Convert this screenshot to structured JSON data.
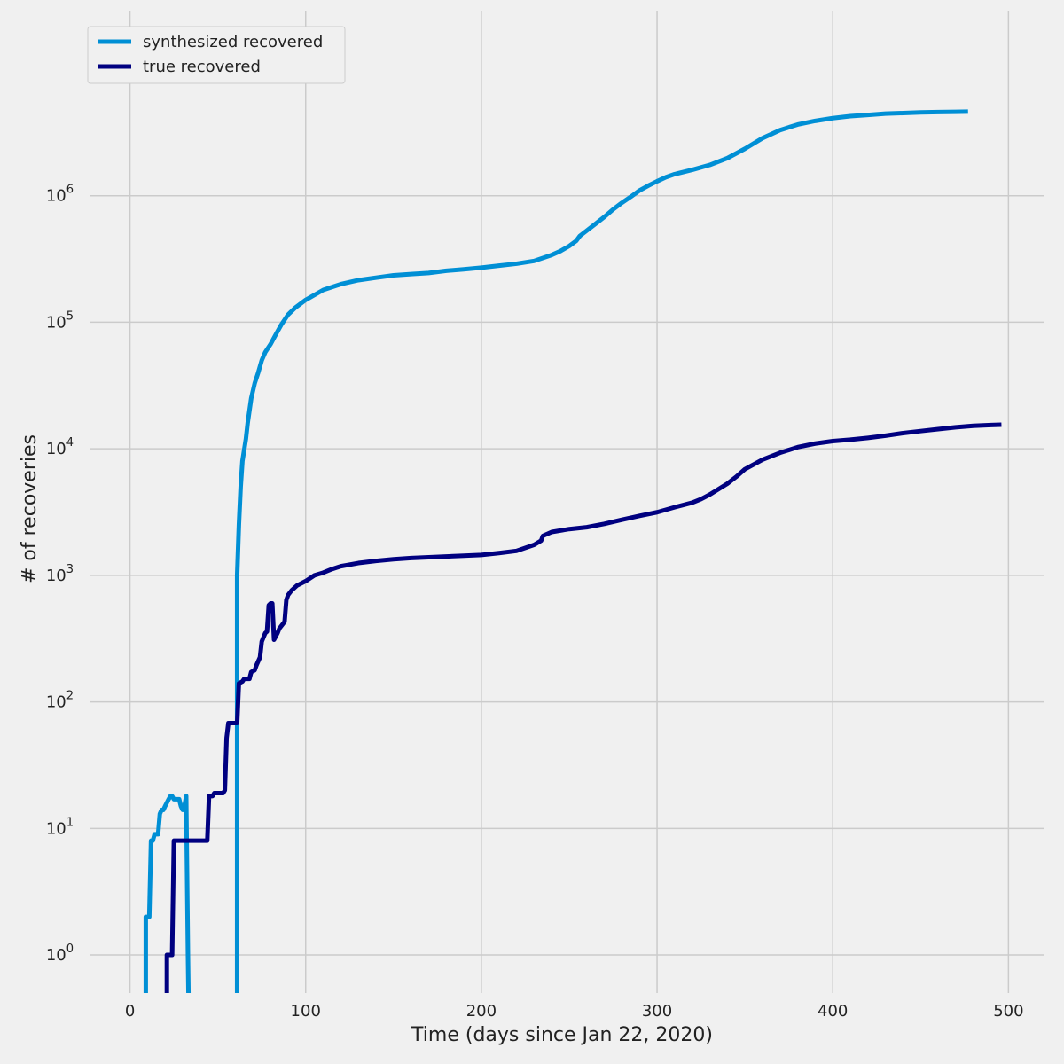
{
  "chart_data": {
    "type": "line",
    "title": "",
    "xlabel": "Time (days since Jan 22, 2020)",
    "ylabel": "# of recoveries",
    "yscale": "log",
    "xlim": [
      -23,
      520
    ],
    "ylim": [
      0.5,
      29000000
    ],
    "grid": true,
    "legend_position": "top-left",
    "x_ticks": [
      {
        "value": 0,
        "label": "0"
      },
      {
        "value": 100,
        "label": "100"
      },
      {
        "value": 200,
        "label": "200"
      },
      {
        "value": 300,
        "label": "300"
      },
      {
        "value": 400,
        "label": "400"
      },
      {
        "value": 500,
        "label": "500"
      }
    ],
    "y_ticks": [
      {
        "value": 1,
        "base": "10",
        "exp": "0"
      },
      {
        "value": 10,
        "base": "10",
        "exp": "1"
      },
      {
        "value": 100,
        "base": "10",
        "exp": "2"
      },
      {
        "value": 1000,
        "base": "10",
        "exp": "3"
      },
      {
        "value": 10000,
        "base": "10",
        "exp": "4"
      },
      {
        "value": 100000,
        "base": "10",
        "exp": "5"
      },
      {
        "value": 1000000,
        "base": "10",
        "exp": "6"
      }
    ],
    "series": [
      {
        "name": "synthesized recovered",
        "color": "#008fd5",
        "points": [
          [
            9,
            0.3
          ],
          [
            9,
            2
          ],
          [
            11,
            2
          ],
          [
            12,
            8
          ],
          [
            13,
            8
          ],
          [
            14,
            9
          ],
          [
            16,
            9
          ],
          [
            17,
            13
          ],
          [
            18,
            14
          ],
          [
            19,
            14
          ],
          [
            20,
            15
          ],
          [
            22,
            17
          ],
          [
            23,
            18
          ],
          [
            24,
            18
          ],
          [
            25,
            17
          ],
          [
            27,
            17
          ],
          [
            28,
            17
          ],
          [
            29,
            15
          ],
          [
            30,
            14
          ],
          [
            31,
            15
          ],
          [
            32,
            18
          ],
          [
            33,
            1
          ],
          [
            33.5,
            0.3
          ],
          [
            61,
            0.3
          ],
          [
            61,
            1000
          ],
          [
            62,
            2500
          ],
          [
            63,
            5000
          ],
          [
            64,
            8000
          ],
          [
            66,
            12000
          ],
          [
            67,
            16000
          ],
          [
            69,
            25000
          ],
          [
            71,
            33000
          ],
          [
            73,
            40000
          ],
          [
            75,
            50000
          ],
          [
            77,
            58000
          ],
          [
            80,
            67000
          ],
          [
            83,
            80000
          ],
          [
            86,
            95000
          ],
          [
            90,
            115000
          ],
          [
            94,
            130000
          ],
          [
            100,
            150000
          ],
          [
            110,
            180000
          ],
          [
            120,
            200000
          ],
          [
            130,
            215000
          ],
          [
            140,
            225000
          ],
          [
            150,
            235000
          ],
          [
            160,
            240000
          ],
          [
            170,
            245000
          ],
          [
            180,
            255000
          ],
          [
            190,
            262000
          ],
          [
            200,
            270000
          ],
          [
            210,
            280000
          ],
          [
            220,
            290000
          ],
          [
            230,
            305000
          ],
          [
            240,
            340000
          ],
          [
            245,
            365000
          ],
          [
            250,
            400000
          ],
          [
            254,
            440000
          ],
          [
            256,
            480000
          ],
          [
            260,
            530000
          ],
          [
            265,
            600000
          ],
          [
            270,
            680000
          ],
          [
            275,
            780000
          ],
          [
            280,
            880000
          ],
          [
            285,
            980000
          ],
          [
            290,
            1100000
          ],
          [
            295,
            1200000
          ],
          [
            300,
            1300000
          ],
          [
            305,
            1400000
          ],
          [
            310,
            1480000
          ],
          [
            320,
            1600000
          ],
          [
            330,
            1750000
          ],
          [
            340,
            1980000
          ],
          [
            350,
            2350000
          ],
          [
            360,
            2850000
          ],
          [
            370,
            3300000
          ],
          [
            380,
            3650000
          ],
          [
            390,
            3900000
          ],
          [
            400,
            4100000
          ],
          [
            410,
            4250000
          ],
          [
            420,
            4350000
          ],
          [
            430,
            4450000
          ],
          [
            440,
            4500000
          ],
          [
            450,
            4550000
          ],
          [
            460,
            4580000
          ],
          [
            470,
            4600000
          ],
          [
            477,
            4620000
          ]
        ]
      },
      {
        "name": "true recovered",
        "color": "#000080",
        "points": [
          [
            21,
            0.3
          ],
          [
            21,
            1
          ],
          [
            24,
            1
          ],
          [
            25,
            8
          ],
          [
            44,
            8
          ],
          [
            45,
            18
          ],
          [
            47,
            18
          ],
          [
            48,
            19
          ],
          [
            53,
            19
          ],
          [
            54,
            20
          ],
          [
            55,
            52
          ],
          [
            56,
            68
          ],
          [
            61,
            68
          ],
          [
            62,
            140
          ],
          [
            64,
            145
          ],
          [
            65,
            152
          ],
          [
            68,
            152
          ],
          [
            69,
            172
          ],
          [
            71,
            178
          ],
          [
            72,
            195
          ],
          [
            74,
            225
          ],
          [
            75,
            300
          ],
          [
            77,
            350
          ],
          [
            78,
            360
          ],
          [
            79,
            580
          ],
          [
            80,
            600
          ],
          [
            81,
            600
          ],
          [
            82,
            310
          ],
          [
            84,
            350
          ],
          [
            85,
            380
          ],
          [
            88,
            430
          ],
          [
            89,
            640
          ],
          [
            90,
            700
          ],
          [
            92,
            760
          ],
          [
            95,
            830
          ],
          [
            100,
            900
          ],
          [
            105,
            1000
          ],
          [
            110,
            1050
          ],
          [
            115,
            1120
          ],
          [
            120,
            1180
          ],
          [
            130,
            1250
          ],
          [
            140,
            1300
          ],
          [
            150,
            1340
          ],
          [
            160,
            1370
          ],
          [
            170,
            1390
          ],
          [
            180,
            1410
          ],
          [
            190,
            1430
          ],
          [
            200,
            1450
          ],
          [
            210,
            1500
          ],
          [
            220,
            1560
          ],
          [
            230,
            1740
          ],
          [
            234,
            1880
          ],
          [
            235,
            2050
          ],
          [
            240,
            2200
          ],
          [
            250,
            2320
          ],
          [
            260,
            2400
          ],
          [
            270,
            2550
          ],
          [
            280,
            2750
          ],
          [
            290,
            2950
          ],
          [
            300,
            3150
          ],
          [
            310,
            3450
          ],
          [
            320,
            3750
          ],
          [
            325,
            4000
          ],
          [
            330,
            4350
          ],
          [
            335,
            4800
          ],
          [
            340,
            5300
          ],
          [
            345,
            6000
          ],
          [
            350,
            6900
          ],
          [
            360,
            8200
          ],
          [
            370,
            9300
          ],
          [
            380,
            10300
          ],
          [
            390,
            11000
          ],
          [
            400,
            11500
          ],
          [
            410,
            11800
          ],
          [
            420,
            12200
          ],
          [
            430,
            12700
          ],
          [
            440,
            13300
          ],
          [
            450,
            13800
          ],
          [
            460,
            14300
          ],
          [
            470,
            14800
          ],
          [
            480,
            15200
          ],
          [
            490,
            15400
          ],
          [
            496,
            15500
          ]
        ]
      }
    ]
  }
}
